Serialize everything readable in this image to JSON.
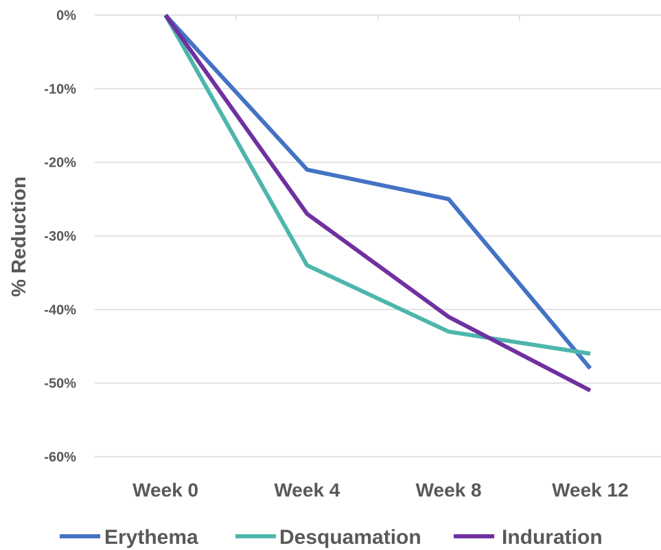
{
  "chart_data": {
    "type": "line",
    "title": "",
    "xlabel": "",
    "ylabel": "% Reduction",
    "categories": [
      "Week 0",
      "Week 4",
      "Week 8",
      "Week 12"
    ],
    "ylim": [
      -60,
      0
    ],
    "yticks": [
      0,
      -10,
      -20,
      -30,
      -40,
      -50,
      -60
    ],
    "ytick_labels": [
      "0%",
      "-10%",
      "-20%",
      "-30%",
      "-40%",
      "-50%",
      "-60%"
    ],
    "grid": true,
    "legend_position": "bottom",
    "series": [
      {
        "name": "Erythema",
        "color": "#4472C4",
        "values": [
          0,
          -21,
          -25,
          -48
        ]
      },
      {
        "name": "Desquamation",
        "color": "#4DB6AC",
        "values": [
          0,
          -34,
          -43,
          -46
        ]
      },
      {
        "name": "Induration",
        "color": "#7030A0",
        "values": [
          0,
          -27,
          -41,
          -51
        ]
      }
    ]
  }
}
